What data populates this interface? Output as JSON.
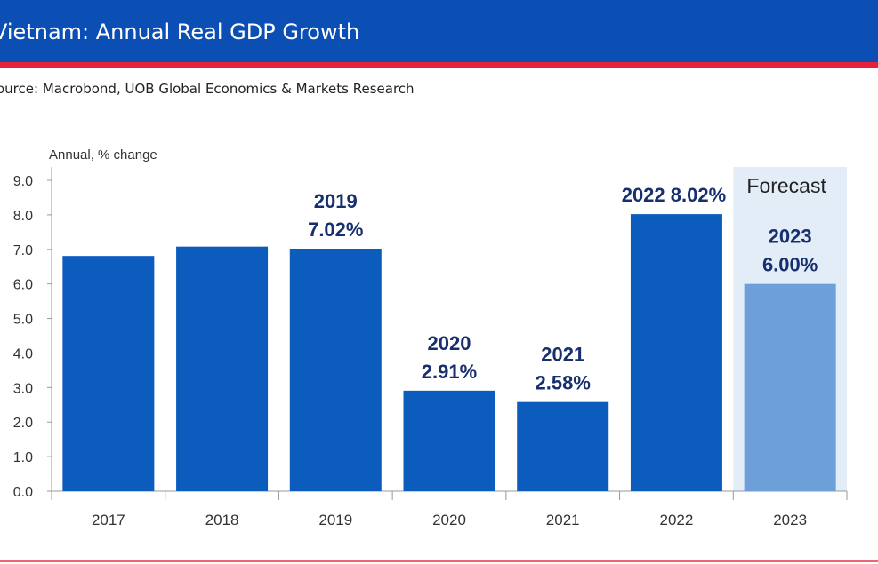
{
  "header": {
    "title": "Vietnam: Annual Real GDP Growth"
  },
  "source": "ource: Macrobond, UOB Global Economics & Markets Research",
  "colors": {
    "header_bg": "#0b4fb4",
    "accent_red": "#e8213b",
    "bar": "#0b5cbd",
    "forecast_bar": "#6d9fd8",
    "forecast_bg": "#e3edf8"
  },
  "chart_data": {
    "type": "bar",
    "ylabel": "Annual, % change",
    "ylim": [
      0,
      9
    ],
    "yticks": [
      "0.0",
      "1.0",
      "2.0",
      "3.0",
      "4.0",
      "5.0",
      "6.0",
      "7.0",
      "8.0",
      "9.0"
    ],
    "categories": [
      "2017",
      "2018",
      "2019",
      "2020",
      "2021",
      "2022",
      "2023"
    ],
    "values": [
      6.81,
      7.08,
      7.02,
      2.91,
      2.58,
      8.02,
      6.0
    ],
    "forecast_label": "Forecast",
    "annotations": [
      {
        "index": 2,
        "lines": [
          "2019",
          "7.02%"
        ]
      },
      {
        "index": 3,
        "lines": [
          "2020",
          "2.91%"
        ]
      },
      {
        "index": 4,
        "lines": [
          "2021",
          "2.58%"
        ]
      },
      {
        "index": 5,
        "lines": [
          "2022  8.02%"
        ]
      },
      {
        "index": 6,
        "lines": [
          "2023",
          "6.00%"
        ]
      }
    ]
  }
}
